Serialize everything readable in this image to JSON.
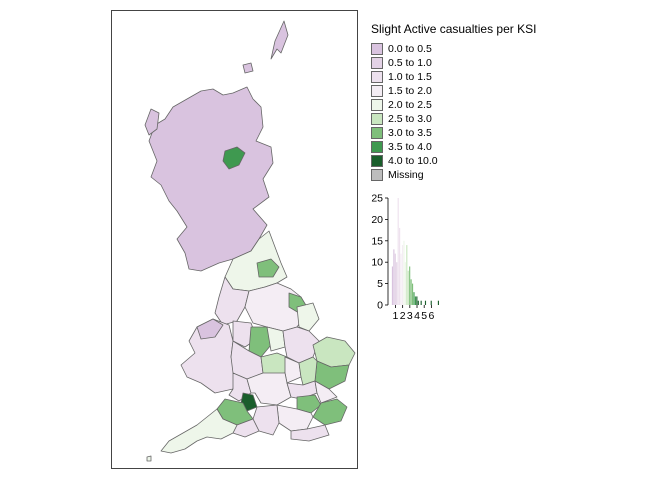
{
  "legend": {
    "title": "Slight Active casualties per KSI",
    "items": [
      {
        "label": "0.0 to 0.5",
        "color": "#d9c3df"
      },
      {
        "label": "0.5 to 1.0",
        "color": "#e3d2e6"
      },
      {
        "label": "1.0 to 1.5",
        "color": "#ede1ee"
      },
      {
        "label": "1.5 to 2.0",
        "color": "#f4edf4"
      },
      {
        "label": "2.0 to 2.5",
        "color": "#eef6ea"
      },
      {
        "label": "2.5 to 3.0",
        "color": "#c9e6c0"
      },
      {
        "label": "3.0 to 3.5",
        "color": "#7fbf7b"
      },
      {
        "label": "3.5 to 4.0",
        "color": "#3f9950"
      },
      {
        "label": "4.0 to 10.0",
        "color": "#1a5e2c"
      },
      {
        "label": "Missing",
        "color": "#bdbdbd"
      }
    ]
  },
  "chart_data": {
    "type": "bar",
    "title": "",
    "xlabel": "",
    "ylabel": "",
    "x_ticks": [
      1,
      2,
      3,
      4,
      5,
      6
    ],
    "y_ticks": [
      0,
      5,
      10,
      15,
      20,
      25
    ],
    "ylim": [
      0,
      25
    ],
    "xlim": [
      0.1,
      7.2
    ],
    "bins": [
      {
        "x": 0.6,
        "count": 9,
        "color": "#d9c3df"
      },
      {
        "x": 0.8,
        "count": 13,
        "color": "#d9c3df"
      },
      {
        "x": 1.0,
        "count": 12,
        "color": "#e3d2e6"
      },
      {
        "x": 1.2,
        "count": 10,
        "color": "#e3d2e6"
      },
      {
        "x": 1.4,
        "count": 25,
        "color": "#ede1ee"
      },
      {
        "x": 1.6,
        "count": 18,
        "color": "#ede1ee"
      },
      {
        "x": 1.8,
        "count": 12,
        "color": "#f4edf4"
      },
      {
        "x": 2.0,
        "count": 14,
        "color": "#f4edf4"
      },
      {
        "x": 2.2,
        "count": 15,
        "color": "#eef6ea"
      },
      {
        "x": 2.4,
        "count": 10,
        "color": "#eef6ea"
      },
      {
        "x": 2.6,
        "count": 14,
        "color": "#c9e6c0"
      },
      {
        "x": 2.8,
        "count": 8,
        "color": "#c9e6c0"
      },
      {
        "x": 3.0,
        "count": 9,
        "color": "#7fbf7b"
      },
      {
        "x": 3.2,
        "count": 6,
        "color": "#7fbf7b"
      },
      {
        "x": 3.4,
        "count": 5,
        "color": "#7fbf7b"
      },
      {
        "x": 3.6,
        "count": 3,
        "color": "#3f9950"
      },
      {
        "x": 3.8,
        "count": 2,
        "color": "#3f9950"
      },
      {
        "x": 4.0,
        "count": 2,
        "color": "#1a5e2c"
      },
      {
        "x": 4.2,
        "count": 1,
        "color": "#1a5e2c"
      },
      {
        "x": 4.6,
        "count": 1,
        "color": "#1a5e2c"
      },
      {
        "x": 5.2,
        "count": 1,
        "color": "#1a5e2c"
      },
      {
        "x": 6.0,
        "count": 1,
        "color": "#1a5e2c"
      },
      {
        "x": 7.0,
        "count": 1,
        "color": "#1a5e2c"
      }
    ]
  }
}
